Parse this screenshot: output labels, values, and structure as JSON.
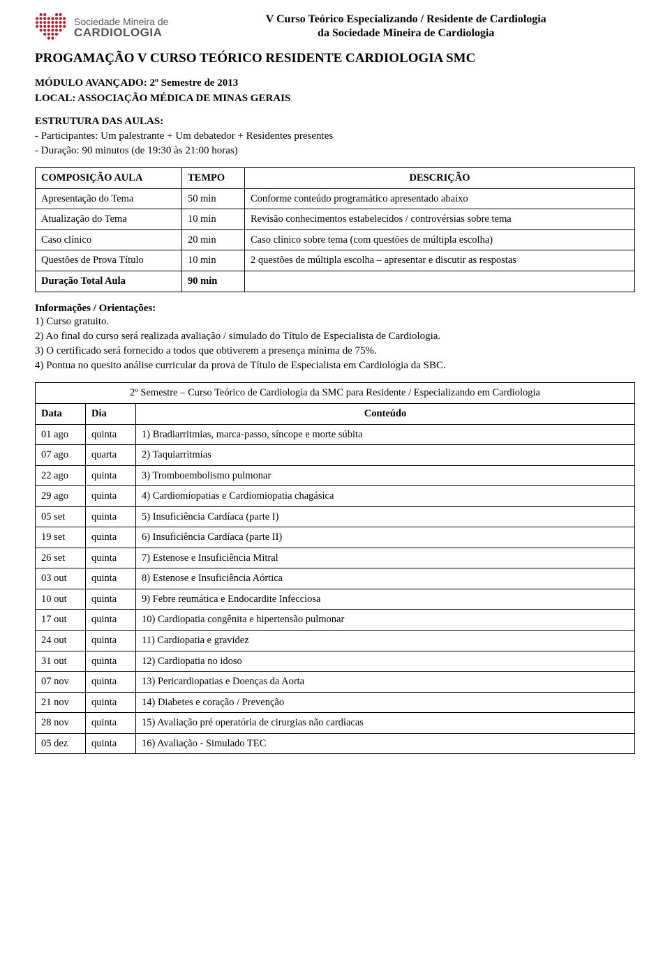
{
  "header": {
    "logo_line1": "Sociedade Mineira de",
    "logo_line2": "CARDIOLOGIA",
    "title_line1": "V Curso Teórico Especializando / Residente de Cardiologia",
    "title_line2": "da Sociedade Mineira de Cardiologia",
    "logo_fill": "#b3202c"
  },
  "main_title": "PROGAMAÇÃO V CURSO TEÓRICO RESIDENTE CARDIOLOGIA SMC",
  "module": {
    "line1": "MÓDULO AVANÇADO: 2º Semestre de 2013",
    "line2": "LOCAL: ASSOCIAÇÃO MÉDICA DE MINAS GERAIS"
  },
  "estrutura": {
    "title": "ESTRUTURA DAS AULAS:",
    "line1": "- Participantes: Um palestrante + Um debatedor + Residentes presentes",
    "line2": "- Duração: 90 minutos (de 19:30 às 21:00 horas)"
  },
  "table1": {
    "headers": {
      "comp": "COMPOSIÇÃO AULA",
      "tempo": "TEMPO",
      "desc": "DESCRIÇÃO"
    },
    "rows": [
      {
        "comp": "Apresentação do Tema",
        "tempo": "50 min",
        "desc": "Conforme conteúdo programático apresentado abaixo"
      },
      {
        "comp": "Atualização do Tema",
        "tempo": "10 min",
        "desc": "Revisão conhecimentos estabelecidos / controvérsias sobre tema"
      },
      {
        "comp": "Caso clínico",
        "tempo": "20 min",
        "desc": "Caso clínico sobre tema (com questões de múltipla escolha)"
      },
      {
        "comp": "Questões de Prova Título",
        "tempo": "10 min",
        "desc": "2 questões de múltipla escolha – apresentar e discutir as respostas"
      },
      {
        "comp": "Duração Total Aula",
        "tempo": "90 min",
        "desc": "",
        "bold": true
      }
    ]
  },
  "info": {
    "title": "Informações / Orientações:",
    "items": [
      "1) Curso gratuito.",
      "2) Ao final do curso será realizada avaliação / simulado do Título de Especialista de Cardiologia.",
      "3) O certificado será fornecido a todos que obtiverem a presença mínima de 75%.",
      "4) Pontua no quesito análise curricular da prova de Título de Especialista em Cardiologia da SBC."
    ]
  },
  "table2": {
    "title": "2º Semestre – Curso Teórico de Cardiologia da SMC para Residente / Especializando em Cardiologia",
    "headers": {
      "data": "Data",
      "dia": "Dia",
      "conteudo": "Conteúdo"
    },
    "rows": [
      {
        "data": "01 ago",
        "dia": "quinta",
        "conteudo": "1) Bradiarritmias, marca-passo, síncope e morte súbita"
      },
      {
        "data": "07 ago",
        "dia": "quarta",
        "conteudo": "2) Taquiarritmias"
      },
      {
        "data": "22 ago",
        "dia": "quinta",
        "conteudo": "3) Tromboembolismo pulmonar"
      },
      {
        "data": "29 ago",
        "dia": "quinta",
        "conteudo": "4) Cardiomiopatias e Cardiomiopatia chagásica"
      },
      {
        "data": "05 set",
        "dia": "quinta",
        "conteudo": "5) Insuficiência Cardíaca (parte I)"
      },
      {
        "data": "19 set",
        "dia": "quinta",
        "conteudo": "6) Insuficiência Cardíaca (parte II)"
      },
      {
        "data": "26 set",
        "dia": "quinta",
        "conteudo": "7) Estenose e Insuficiência Mitral"
      },
      {
        "data": "03 out",
        "dia": "quinta",
        "conteudo": "8) Estenose e Insuficiência Aórtica"
      },
      {
        "data": "10 out",
        "dia": "quinta",
        "conteudo": "9) Febre reumática e Endocardite Infecciosa"
      },
      {
        "data": "17 out",
        "dia": "quinta",
        "conteudo": "10) Cardiopatia congênita e hipertensão pulmonar"
      },
      {
        "data": "24 out",
        "dia": "quinta",
        "conteudo": "11) Cardiopatia e gravidez"
      },
      {
        "data": "31 out",
        "dia": "quinta",
        "conteudo": "12) Cardiopatia no idoso"
      },
      {
        "data": "07 nov",
        "dia": "quinta",
        "conteudo": "13) Pericardiopatias e Doenças da Aorta"
      },
      {
        "data": "21 nov",
        "dia": "quinta",
        "conteudo": "14) Diabetes e coração / Prevenção"
      },
      {
        "data": "28 nov",
        "dia": "quinta",
        "conteudo": "15) Avaliação pré operatória de cirurgias não cardíacas"
      },
      {
        "data": "05 dez",
        "dia": "quinta",
        "conteudo": "16) Avaliação - Simulado TEC"
      }
    ]
  }
}
